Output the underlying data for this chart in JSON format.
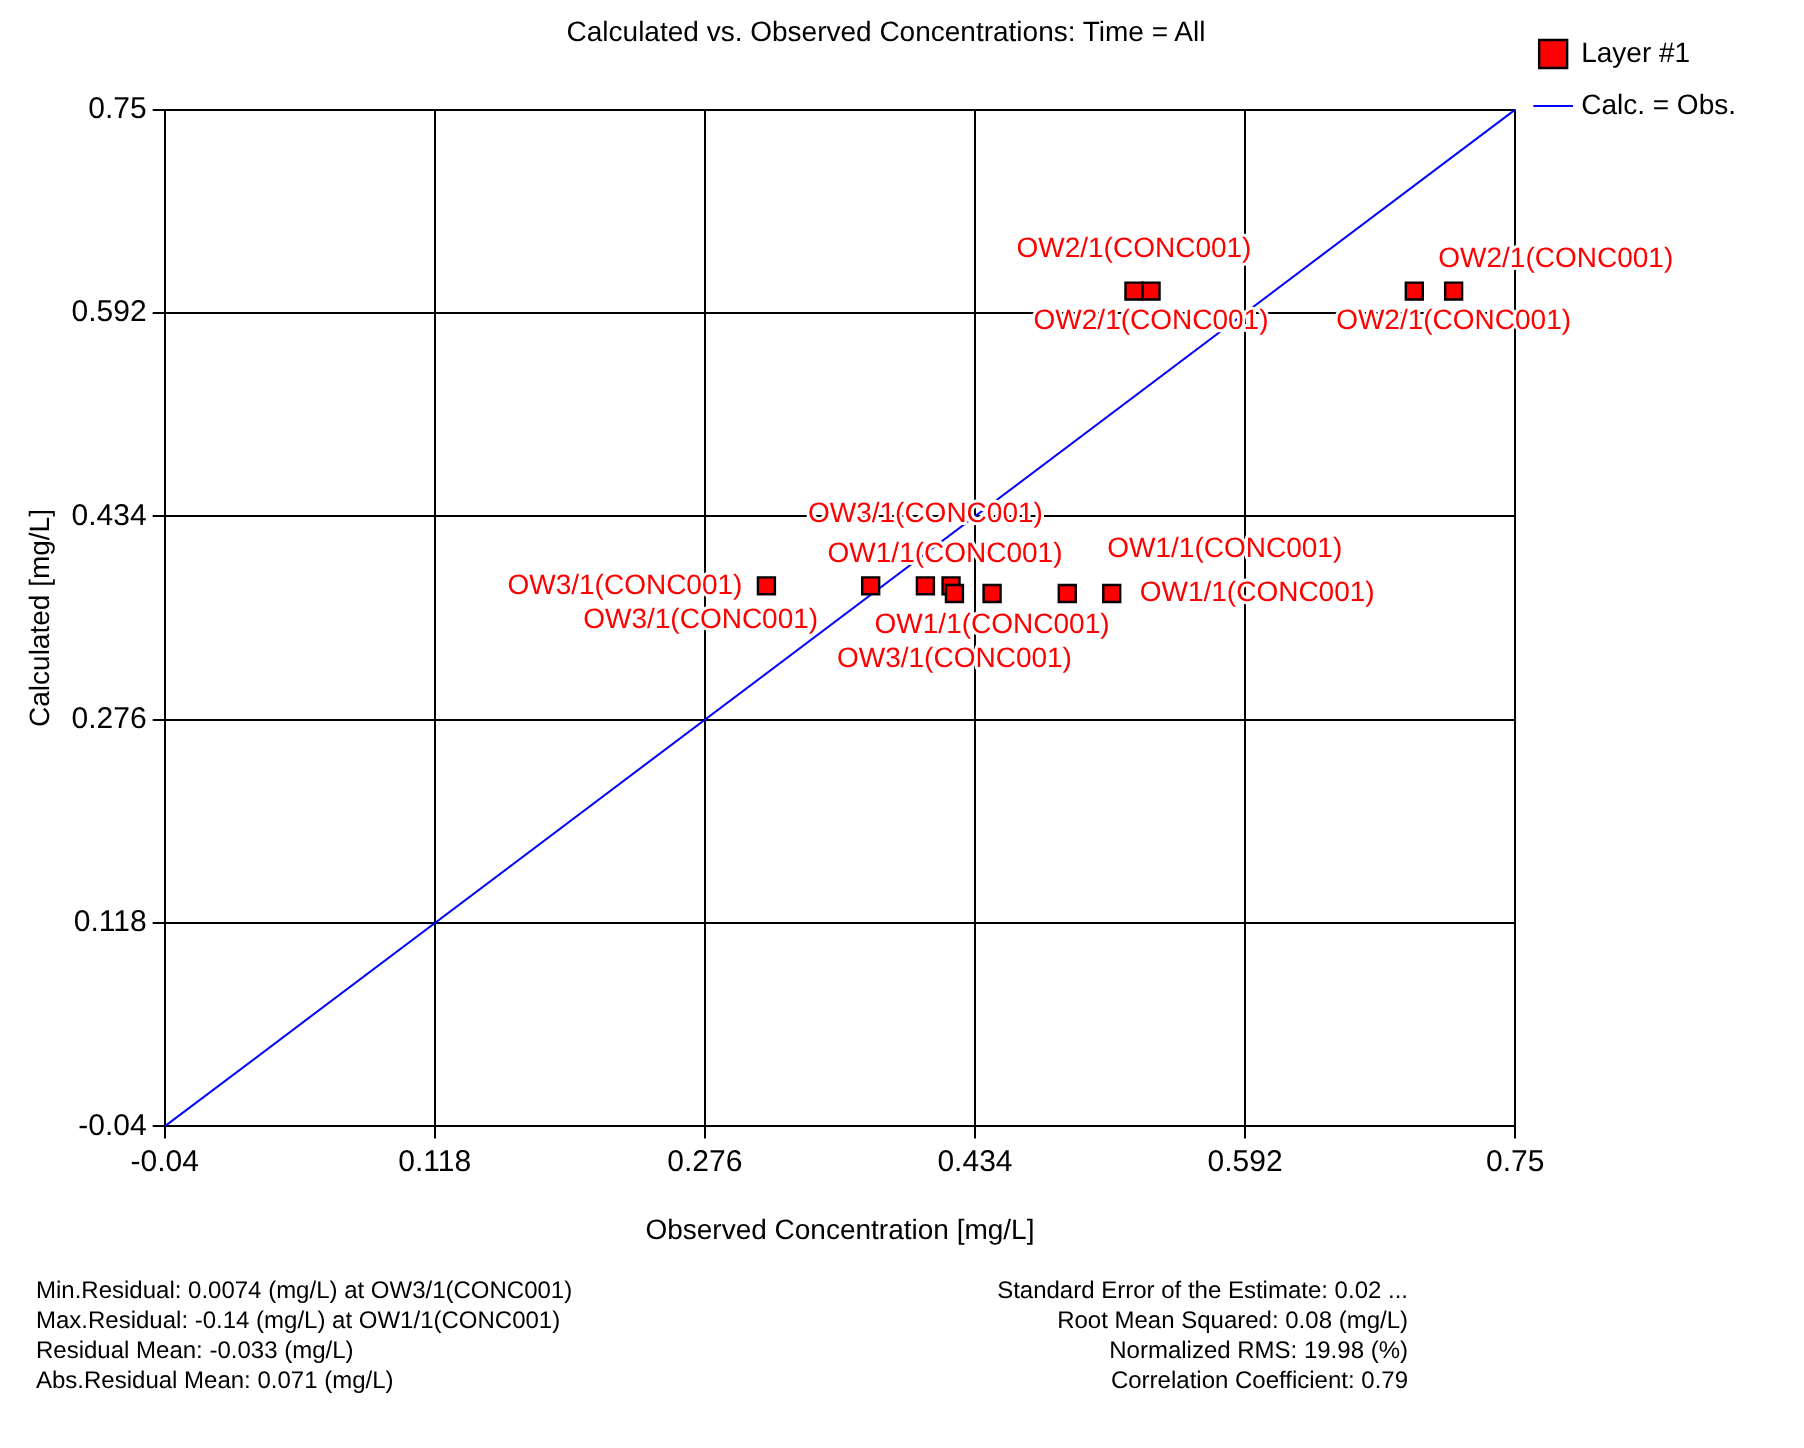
{
  "chart_data": {
    "type": "scatter",
    "title": "Calculated vs. Observed Concentrations: Time = All",
    "xlabel": "Observed Concentration [mg/L]",
    "ylabel": "Calculated [mg/L]",
    "xlim": [
      -0.04,
      0.75
    ],
    "xticks": [
      -0.04,
      0.118,
      0.276,
      0.434,
      0.592,
      0.75
    ],
    "ylim": [
      -0.04,
      0.75
    ],
    "yticks": [
      -0.04,
      0.118,
      0.276,
      0.434,
      0.592,
      0.75
    ],
    "grid": true,
    "legend": "top right",
    "series": [
      {
        "name": "Layer #1",
        "marker": "square",
        "color": "#ff0000",
        "x": [
          0.312,
          0.373,
          0.405,
          0.42,
          0.422,
          0.444,
          0.488,
          0.514,
          0.527,
          0.537,
          0.691,
          0.714
        ],
        "values": [
          0.38,
          0.38,
          0.38,
          0.38,
          0.374,
          0.374,
          0.374,
          0.374,
          0.609,
          0.609,
          0.609,
          0.609
        ],
        "value_labels": [
          "OW3/1(CONC001)",
          "OW3/1(CONC001)",
          "OW3/1(CONC001)",
          "OW1/1(CONC001)",
          "OW3/1(CONC001)",
          "OW1/1(CONC001)",
          "OW1/1(CONC001)",
          "OW1/1(CONC001)",
          "OW2/1(CONC001)",
          "OW2/1(CONC001)",
          "OW2/1(CONC001)",
          "OW2/1(CONC001)"
        ]
      },
      {
        "name": "Calc. = Obs.",
        "type": "line",
        "marker": "none",
        "color": "#0000ff",
        "x": [
          -0.04,
          0.75
        ],
        "values": [
          -0.04,
          0.75
        ]
      }
    ],
    "annotations": [
      "Min.Residual: 0.0074 (mg/L) at OW3/1(CONC001)",
      "Max.Residual: -0.14 (mg/L) at OW1/1(CONC001)",
      "Residual Mean: -0.033 (mg/L)",
      "Abs.Residual Mean: 0.071 (mg/L)",
      "Standard Error of the Estimate: 0.02 ...",
      "Root Mean Squared: 0.08 (mg/L)",
      "Normalized RMS: 19.98 (%)",
      "Correlation Coefficient: 0.79"
    ]
  }
}
